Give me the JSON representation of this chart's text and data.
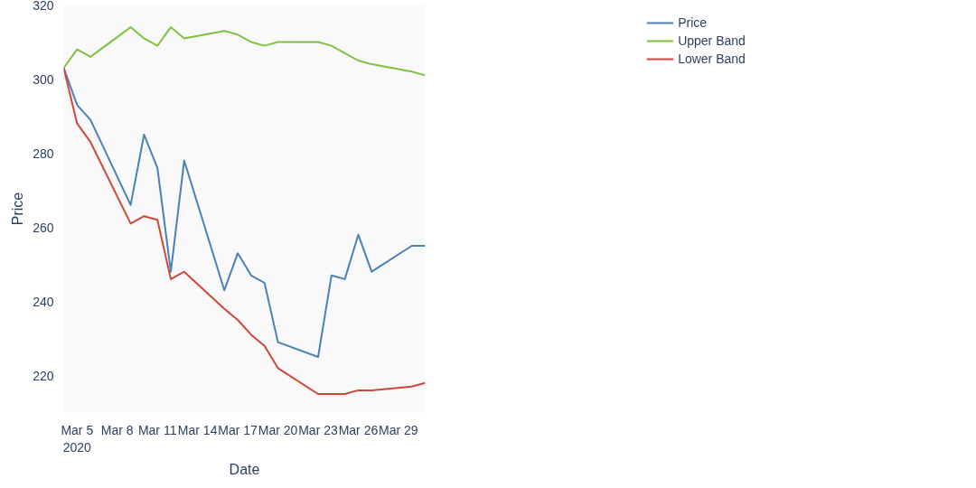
{
  "chart_data": {
    "type": "line",
    "xlabel": "Date",
    "ylabel": "Price",
    "x": [
      "2020-03-04",
      "2020-03-05",
      "2020-03-06",
      "2020-03-09",
      "2020-03-10",
      "2020-03-11",
      "2020-03-12",
      "2020-03-13",
      "2020-03-16",
      "2020-03-17",
      "2020-03-18",
      "2020-03-19",
      "2020-03-20",
      "2020-03-23",
      "2020-03-24",
      "2020-03-25",
      "2020-03-26",
      "2020-03-27",
      "2020-03-30",
      "2020-03-31"
    ],
    "series": [
      {
        "name": "Price",
        "color": "#4a7fb8",
        "values": [
          303,
          293,
          289,
          266,
          285,
          276,
          248,
          278,
          243,
          253,
          247,
          245,
          229,
          225,
          247,
          246,
          258,
          248,
          255,
          255
        ]
      },
      {
        "name": "Upper Band",
        "color": "#7fc241",
        "values": [
          303,
          308,
          306,
          314,
          311,
          309,
          314,
          311,
          313,
          312,
          310,
          309,
          310,
          310,
          309,
          307,
          305,
          304,
          302,
          301
        ]
      },
      {
        "name": "Lower Band",
        "color": "#d0473a",
        "values": [
          303,
          288,
          283,
          261,
          263,
          262,
          246,
          248,
          238,
          235,
          231,
          228,
          222,
          215,
          215,
          215,
          216,
          216,
          217,
          218
        ]
      }
    ],
    "xlim": [
      "2020-03-04",
      "2020-03-31"
    ],
    "xticks": [
      {
        "value": "2020-03-05",
        "label": "Mar 5\n2020"
      },
      {
        "value": "2020-03-08",
        "label": "Mar 8"
      },
      {
        "value": "2020-03-11",
        "label": "Mar 11"
      },
      {
        "value": "2020-03-14",
        "label": "Mar 14"
      },
      {
        "value": "2020-03-17",
        "label": "Mar 17"
      },
      {
        "value": "2020-03-20",
        "label": "Mar 20"
      },
      {
        "value": "2020-03-23",
        "label": "Mar 23"
      },
      {
        "value": "2020-03-26",
        "label": "Mar 26"
      },
      {
        "value": "2020-03-29",
        "label": "Mar 29"
      }
    ],
    "ylim": [
      210,
      320
    ],
    "yticks": [
      220,
      240,
      260,
      280,
      300,
      320
    ],
    "legend": "top right",
    "marker": "none",
    "line_style": "solid"
  }
}
